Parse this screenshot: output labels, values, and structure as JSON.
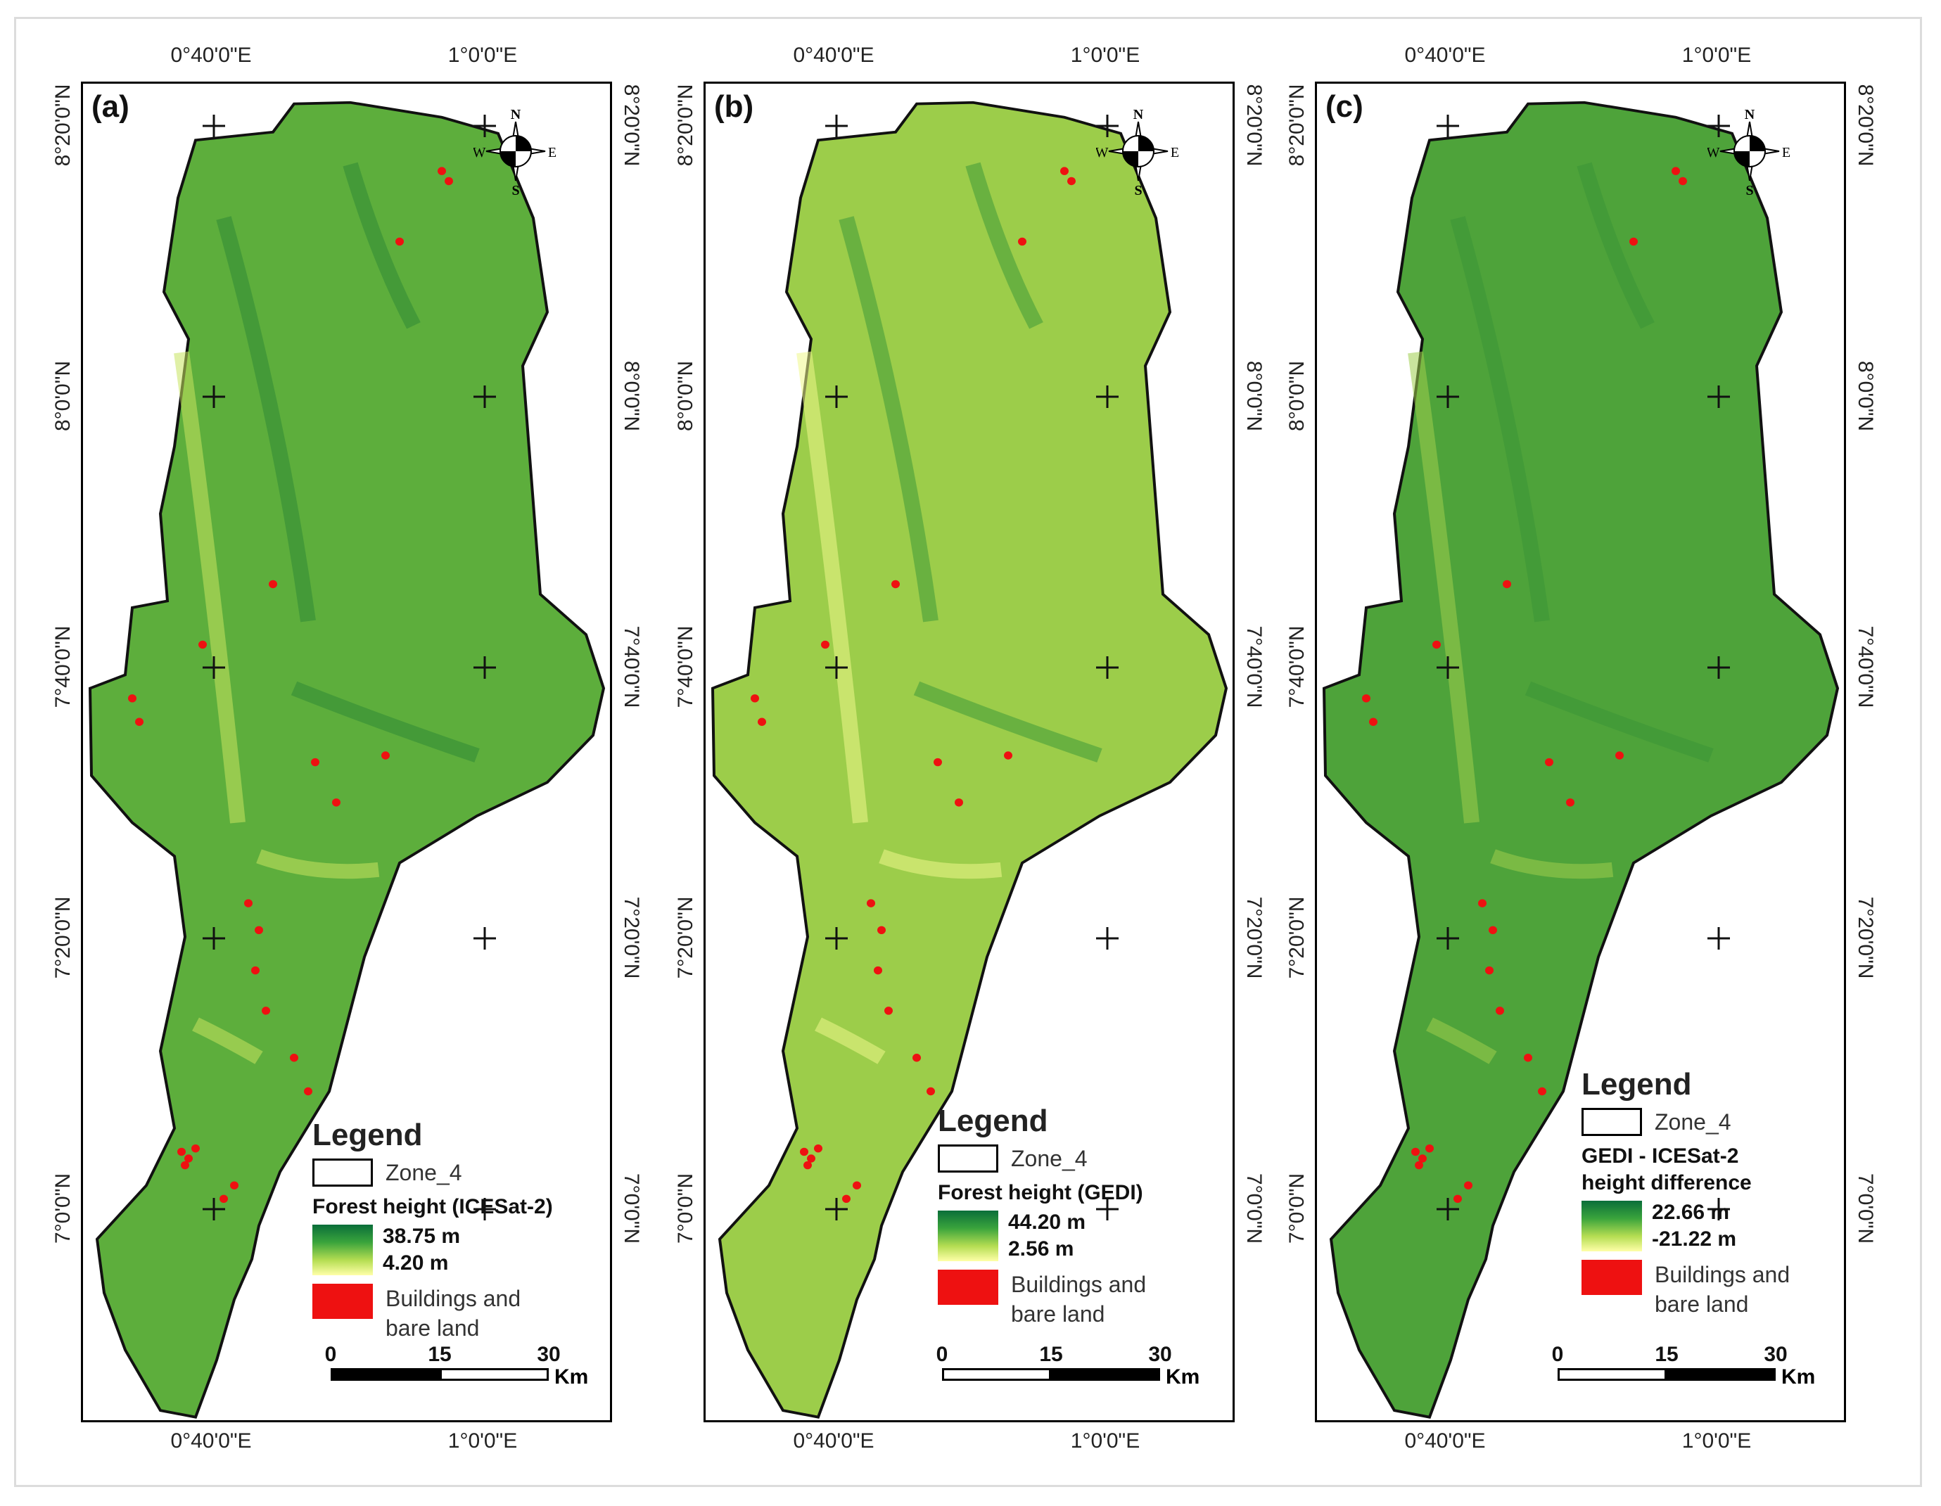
{
  "coordinates": {
    "lon_top": [
      "0°40'0\"E",
      "1°0'0\"E"
    ],
    "lon_bottom": [
      "0°40'0\"E",
      "1°0'0\"E"
    ],
    "lat": [
      "8°20'0\"N",
      "8°0'0\"N",
      "7°40'0\"N",
      "7°20'0\"N",
      "7°0'0\"N"
    ]
  },
  "north_arrow": {
    "n": "N",
    "s": "S",
    "e": "E",
    "w": "W"
  },
  "panels": [
    {
      "label": "(a)",
      "legend_title": "Legend",
      "zone_label": "Zone_4",
      "variable_title": "Forest height (ICESat-2)",
      "ramp_max": "38.75 m",
      "ramp_min": "4.20 m",
      "buildings_label_1": "Buildings and",
      "buildings_label_2": "bare land",
      "fill_color": "#5dae3c"
    },
    {
      "label": "(b)",
      "legend_title": "Legend",
      "zone_label": "Zone_4",
      "variable_title": "Forest height (GEDI)",
      "ramp_max": "44.20 m",
      "ramp_min": "2.56 m",
      "buildings_label_1": "Buildings and",
      "buildings_label_2": "bare land",
      "fill_color": "#9ccd4a"
    },
    {
      "label": "(c)",
      "legend_title": "Legend",
      "zone_label": "Zone_4",
      "variable_title_1": "GEDI - ICESat-2",
      "variable_title_2": "height difference",
      "ramp_max": "22.66 m",
      "ramp_min": "-21.22 m",
      "buildings_label_1": "Buildings and",
      "buildings_label_2": "bare land",
      "fill_color": "#4ea33a"
    }
  ],
  "scalebar": {
    "ticks": [
      "0",
      "15",
      "30"
    ],
    "unit": "Km"
  },
  "colors": {
    "building": "#ee1111",
    "ramp_high": "#0a6e3a",
    "ramp_low": "#ffffa8"
  }
}
